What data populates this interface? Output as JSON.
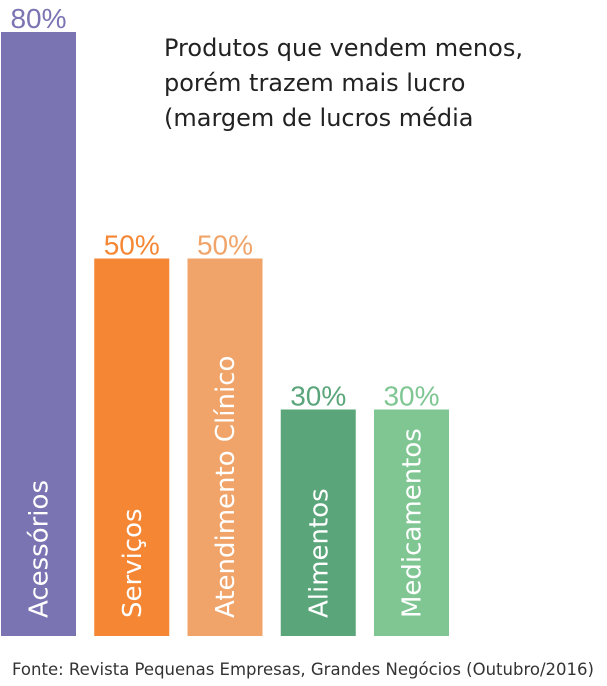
{
  "chart_data": {
    "type": "bar",
    "title_lines": [
      "Produtos que vendem menos,",
      "porém trazem mais lucro",
      "(margem de lucros média"
    ],
    "categories": [
      "Acessórios",
      "Serviços",
      "Atendimento Clínico",
      "Alimentos",
      "Medicamentos"
    ],
    "values": [
      80,
      50,
      50,
      30,
      30
    ],
    "value_labels": [
      "80%",
      "50%",
      "50%",
      "30%",
      "30%"
    ],
    "unit": "%",
    "ylim": [
      0,
      80
    ],
    "grid": false,
    "legend": "none",
    "colors": [
      "#7b74b3",
      "#f58634",
      "#f0a46a",
      "#5aa57a",
      "#7fc693"
    ],
    "source": "Fonte: Revista Pequenas Empresas, Grandes Negócios (Outubro/2016)"
  }
}
